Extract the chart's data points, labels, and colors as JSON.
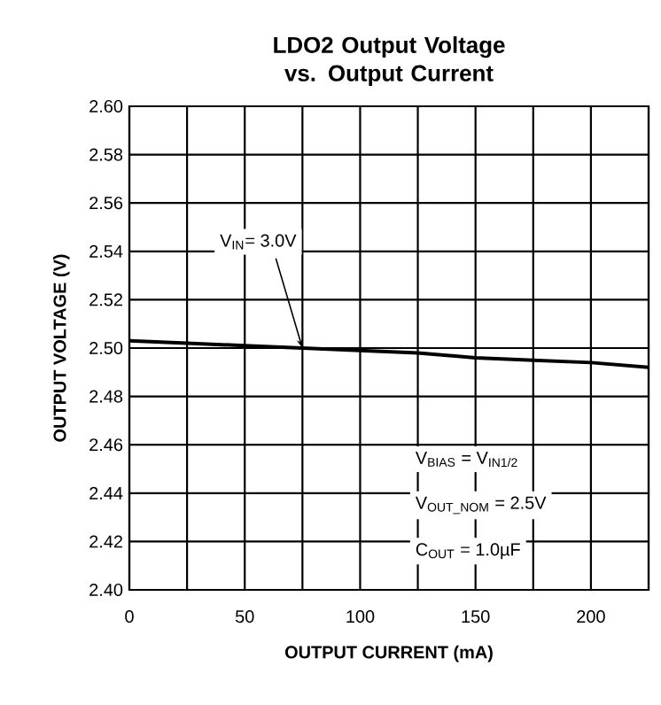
{
  "chart_data": {
    "type": "line",
    "title": "LDO2 Output Voltage\nvs. Output Current",
    "xlabel": "OUTPUT CURRENT (mA)",
    "ylabel": "OUTPUT VOLTAGE (V)",
    "x": [
      0,
      25,
      50,
      75,
      100,
      125,
      150,
      175,
      200,
      225
    ],
    "series": [
      {
        "color": "#000000",
        "values": [
          2.503,
          2.502,
          2.501,
          2.5,
          2.499,
          2.498,
          2.496,
          2.495,
          2.494,
          2.492
        ]
      }
    ],
    "xlim": [
      0,
      225
    ],
    "xticks": [
      0,
      {
        "value": 25,
        "label": null
      },
      50,
      {
        "value": 75,
        "label": null
      },
      100,
      {
        "value": 125,
        "label": null
      },
      150,
      {
        "value": 175,
        "label": null
      },
      200,
      {
        "value": 225,
        "label": null
      }
    ],
    "ylim": [
      2.4,
      2.6
    ],
    "yticks": [
      {
        "value": 2.4,
        "label": "2.40"
      },
      {
        "value": 2.42,
        "label": "2.42"
      },
      {
        "value": 2.44,
        "label": "2.44"
      },
      {
        "value": 2.46,
        "label": "2.46"
      },
      {
        "value": 2.48,
        "label": "2.48"
      },
      {
        "value": 2.5,
        "label": "2.50"
      },
      {
        "value": 2.52,
        "label": "2.52"
      },
      {
        "value": 2.54,
        "label": "2.54"
      },
      {
        "value": 2.56,
        "label": "2.56"
      },
      {
        "value": 2.58,
        "label": "2.58"
      },
      {
        "value": 2.6,
        "label": "2.60"
      }
    ],
    "grid": true,
    "legend": false,
    "marker": "none",
    "line_style": "solid",
    "annotations": [
      {
        "text": "V$_{IN}$= 3.0V",
        "x": 75,
        "y": 2.5
      },
      "V$_{BIAS}$ = V$_{IN1/2}$",
      "V$_{OUT_NOM}$ = 2.5V",
      "C$_{OUT}$ = 1.0µF"
    ]
  }
}
